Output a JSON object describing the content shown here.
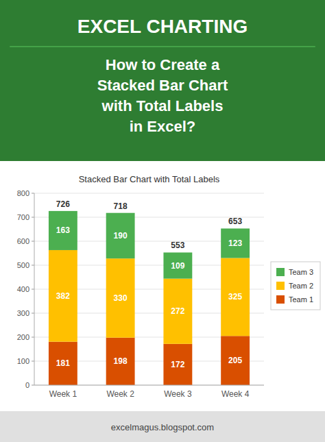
{
  "header": {
    "title": "EXCEL CHARTING",
    "subtitle": "How to Create a\nStacked Bar Chart\nwith Total Labels\nin Excel?"
  },
  "footer": "excelmagus.blogspot.com",
  "chart_data": {
    "type": "bar",
    "stacked": true,
    "title": "Stacked Bar Chart with Total Labels",
    "categories": [
      "Week 1",
      "Week 2",
      "Week 3",
      "Week 4"
    ],
    "series": [
      {
        "name": "Team 1",
        "color": "#d94f00",
        "values": [
          181,
          198,
          172,
          205
        ]
      },
      {
        "name": "Team 2",
        "color": "#ffc000",
        "values": [
          382,
          330,
          272,
          325
        ]
      },
      {
        "name": "Team 3",
        "color": "#4caf50",
        "values": [
          163,
          190,
          109,
          123
        ]
      }
    ],
    "totals": [
      726,
      718,
      553,
      653
    ],
    "ylim": [
      0,
      800
    ],
    "yticks": [
      0,
      100,
      200,
      300,
      400,
      500,
      600,
      700,
      800
    ],
    "grid": true,
    "legend": "right",
    "data_labels": true
  }
}
